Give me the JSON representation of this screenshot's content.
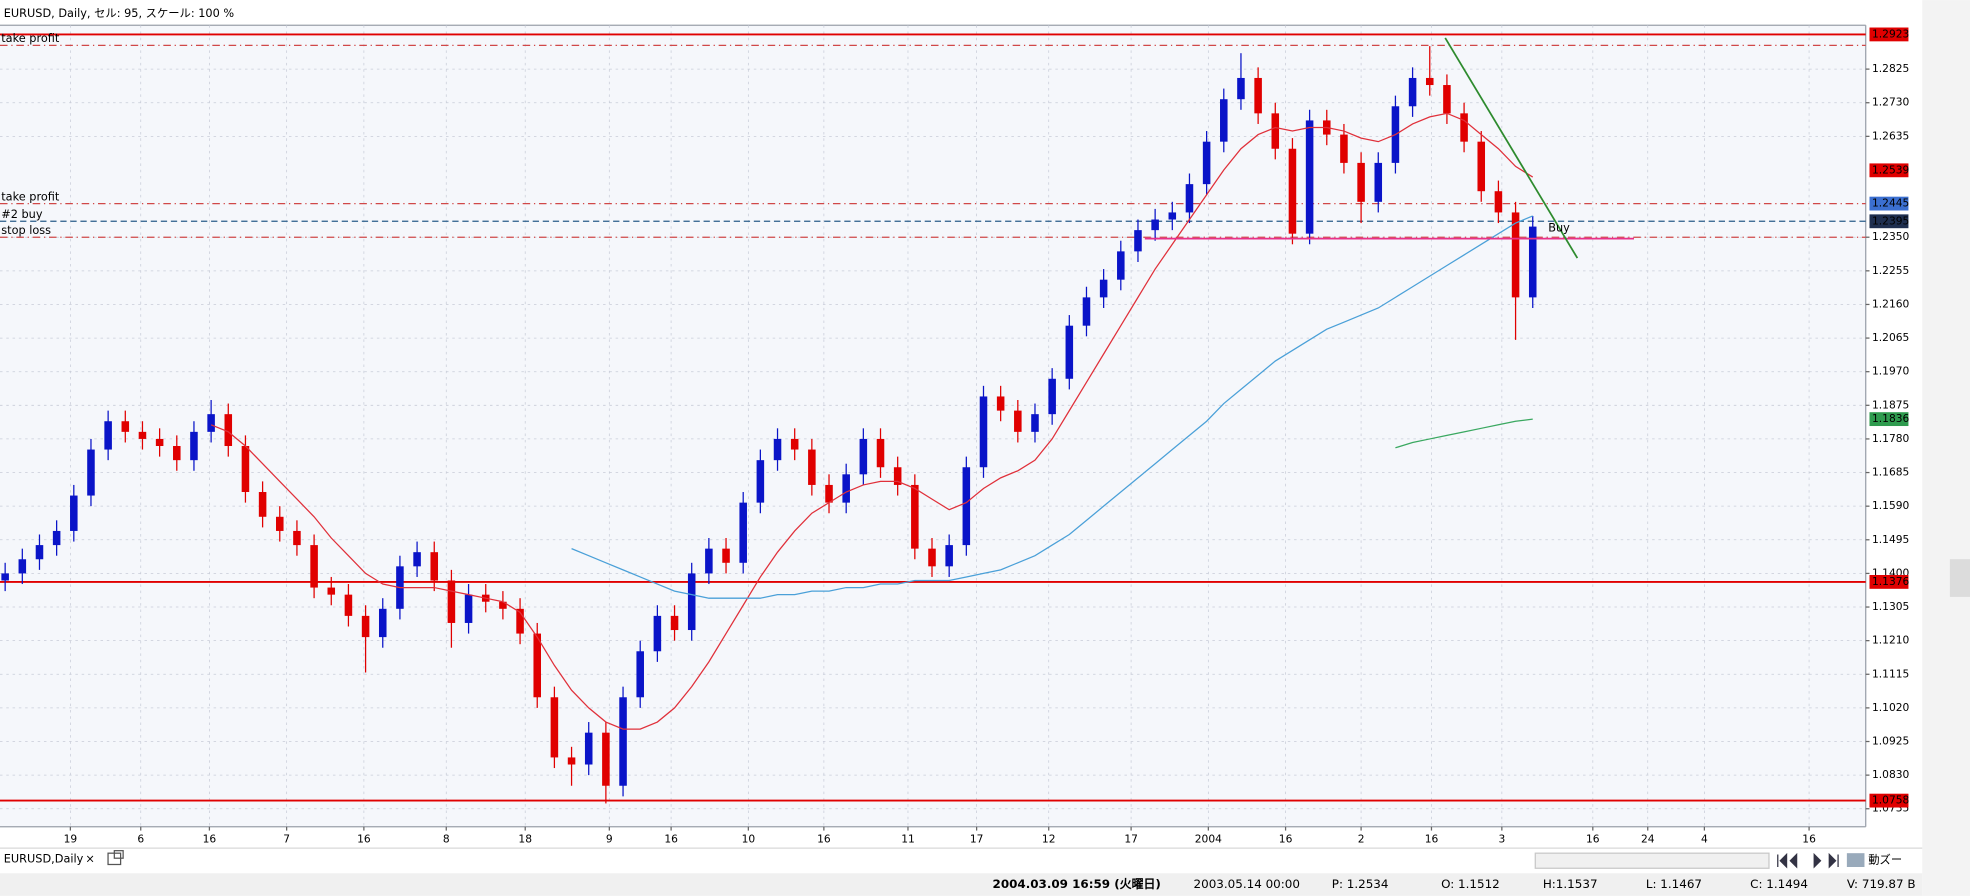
{
  "window": {
    "title": "EURUSD, Daily, セル: 95, スケール: 100 %",
    "tab": "EURUSD,Daily",
    "tab_close": "×",
    "zoom": "動ズー"
  },
  "status_bar": [
    "2004.03.09 16:59 (火曜日)",
    "2003.05.14 00:00",
    "P: 1.2534",
    "O: 1.1512",
    "H:1.1537",
    "L: 1.1467",
    "C: 1.1494",
    "V: 719.87 B"
  ],
  "chart_data": {
    "type": "candlestick",
    "up_color": "#0a14c8",
    "down_color": "#e00000",
    "xlim": [
      -0.3,
      108.4
    ],
    "ylim": [
      1.0684,
      1.2949
    ],
    "grid": true,
    "xticks": [
      {
        "value": 3.8,
        "label": "19"
      },
      {
        "value": 7.9,
        "label": "6"
      },
      {
        "value": 11.9,
        "label": "16"
      },
      {
        "value": 16.4,
        "label": "7"
      },
      {
        "value": 20.9,
        "label": "16"
      },
      {
        "value": 25.7,
        "label": "8"
      },
      {
        "value": 30.3,
        "label": "18"
      },
      {
        "value": 35.2,
        "label": "9"
      },
      {
        "value": 38.8,
        "label": "16"
      },
      {
        "value": 43.3,
        "label": "10"
      },
      {
        "value": 47.7,
        "label": "16"
      },
      {
        "value": 52.6,
        "label": "11"
      },
      {
        "value": 56.6,
        "label": "17"
      },
      {
        "value": 60.8,
        "label": "12"
      },
      {
        "value": 65.6,
        "label": "17"
      },
      {
        "value": 70.1,
        "label": "2004"
      },
      {
        "value": 74.6,
        "label": "16"
      },
      {
        "value": 79.0,
        "label": "2"
      },
      {
        "value": 83.1,
        "label": "16"
      },
      {
        "value": 87.2,
        "label": "3"
      },
      {
        "value": 92.5,
        "label": "16"
      },
      {
        "value": 95.7,
        "label": "24"
      },
      {
        "value": 99.0,
        "label": "4"
      },
      {
        "value": 105.1,
        "label": "16"
      }
    ],
    "yticks": [
      1.2825,
      {
        "value": 1.273,
        "label": "1.2730"
      },
      1.2635,
      {
        "value": 1.235,
        "label": "1.2350"
      },
      1.2255,
      {
        "value": 1.216,
        "label": "1.2160"
      },
      1.2065,
      {
        "value": 1.197,
        "label": "1.1970"
      },
      1.1875,
      {
        "value": 1.178,
        "label": "1.1780"
      },
      1.1685,
      {
        "value": 1.159,
        "label": "1.1590"
      },
      1.1495,
      {
        "value": 1.14,
        "label": "1.1400"
      },
      1.1305,
      {
        "value": 1.121,
        "label": "1.1210"
      },
      1.1115,
      {
        "value": 1.102,
        "label": "1.1020"
      },
      1.0925,
      {
        "value": 1.083,
        "label": "1.0830"
      },
      1.0735
    ],
    "open": [
      1.138,
      1.14,
      1.144,
      1.148,
      1.152,
      1.162,
      1.175,
      1.183,
      1.18,
      1.178,
      1.176,
      1.172,
      1.18,
      1.185,
      1.176,
      1.163,
      1.156,
      1.152,
      1.148,
      1.136,
      1.134,
      1.128,
      1.122,
      1.13,
      1.142,
      1.146,
      1.138,
      1.126,
      1.134,
      1.132,
      1.13,
      1.123,
      1.105,
      1.088,
      1.086,
      1.095,
      1.08,
      1.105,
      1.118,
      1.128,
      1.124,
      1.14,
      1.147,
      1.143,
      1.16,
      1.172,
      1.178,
      1.175,
      1.165,
      1.16,
      1.168,
      1.178,
      1.17,
      1.165,
      1.147,
      1.142,
      1.148,
      1.17,
      1.19,
      1.186,
      1.18,
      1.185,
      1.195,
      1.21,
      1.218,
      1.223,
      1.231,
      1.237,
      1.24,
      1.242,
      1.25,
      1.262,
      1.274,
      1.28,
      1.27,
      1.26,
      1.236,
      1.268,
      1.264,
      1.256,
      1.245,
      1.256,
      1.272,
      1.28,
      1.278,
      1.27,
      1.262,
      1.248,
      1.242,
      1.218
    ],
    "high": [
      1.143,
      1.147,
      1.151,
      1.155,
      1.165,
      1.178,
      1.186,
      1.186,
      1.183,
      1.181,
      1.179,
      1.183,
      1.189,
      1.188,
      1.179,
      1.166,
      1.159,
      1.155,
      1.151,
      1.139,
      1.137,
      1.131,
      1.133,
      1.145,
      1.149,
      1.149,
      1.141,
      1.137,
      1.137,
      1.135,
      1.133,
      1.126,
      1.108,
      1.091,
      1.098,
      1.098,
      1.108,
      1.121,
      1.131,
      1.131,
      1.143,
      1.15,
      1.15,
      1.163,
      1.175,
      1.181,
      1.181,
      1.178,
      1.168,
      1.171,
      1.181,
      1.181,
      1.173,
      1.168,
      1.15,
      1.151,
      1.173,
      1.193,
      1.193,
      1.189,
      1.188,
      1.198,
      1.213,
      1.221,
      1.226,
      1.234,
      1.24,
      1.243,
      1.245,
      1.253,
      1.265,
      1.277,
      1.287,
      1.283,
      1.273,
      1.263,
      1.271,
      1.271,
      1.267,
      1.259,
      1.259,
      1.275,
      1.283,
      1.289,
      1.281,
      1.273,
      1.265,
      1.251,
      1.245,
      1.241
    ],
    "low": [
      1.135,
      1.137,
      1.141,
      1.145,
      1.149,
      1.159,
      1.172,
      1.177,
      1.175,
      1.173,
      1.169,
      1.169,
      1.177,
      1.173,
      1.16,
      1.153,
      1.149,
      1.145,
      1.133,
      1.131,
      1.125,
      1.112,
      1.119,
      1.127,
      1.139,
      1.135,
      1.119,
      1.123,
      1.129,
      1.127,
      1.12,
      1.102,
      1.085,
      1.08,
      1.083,
      1.075,
      1.077,
      1.102,
      1.115,
      1.121,
      1.121,
      1.137,
      1.14,
      1.14,
      1.157,
      1.169,
      1.172,
      1.162,
      1.157,
      1.157,
      1.165,
      1.167,
      1.162,
      1.144,
      1.139,
      1.139,
      1.145,
      1.167,
      1.183,
      1.177,
      1.177,
      1.182,
      1.192,
      1.207,
      1.215,
      1.22,
      1.228,
      1.234,
      1.237,
      1.239,
      1.247,
      1.259,
      1.271,
      1.267,
      1.257,
      1.233,
      1.233,
      1.261,
      1.253,
      1.239,
      1.242,
      1.253,
      1.269,
      1.275,
      1.267,
      1.259,
      1.245,
      1.239,
      1.206,
      1.215
    ],
    "close": [
      1.14,
      1.144,
      1.148,
      1.152,
      1.162,
      1.175,
      1.183,
      1.18,
      1.178,
      1.176,
      1.172,
      1.18,
      1.185,
      1.176,
      1.163,
      1.156,
      1.152,
      1.148,
      1.136,
      1.134,
      1.128,
      1.122,
      1.13,
      1.142,
      1.146,
      1.138,
      1.126,
      1.134,
      1.132,
      1.13,
      1.123,
      1.105,
      1.088,
      1.086,
      1.095,
      1.08,
      1.105,
      1.118,
      1.128,
      1.124,
      1.14,
      1.147,
      1.143,
      1.16,
      1.172,
      1.178,
      1.175,
      1.165,
      1.16,
      1.168,
      1.178,
      1.17,
      1.165,
      1.147,
      1.142,
      1.148,
      1.17,
      1.19,
      1.186,
      1.18,
      1.185,
      1.195,
      1.21,
      1.218,
      1.223,
      1.231,
      1.237,
      1.24,
      1.242,
      1.25,
      1.262,
      1.274,
      1.28,
      1.27,
      1.26,
      1.236,
      1.268,
      1.264,
      1.256,
      1.245,
      1.256,
      1.272,
      1.28,
      1.278,
      1.27,
      1.262,
      1.248,
      1.242,
      1.218,
      1.238
    ],
    "series": [
      {
        "color": "#e0303a",
        "values": [
          null,
          null,
          null,
          null,
          null,
          null,
          null,
          null,
          null,
          null,
          null,
          null,
          1.182,
          1.18,
          1.176,
          1.171,
          1.166,
          1.161,
          1.156,
          1.15,
          1.145,
          1.14,
          1.137,
          1.136,
          1.136,
          1.136,
          1.135,
          1.134,
          1.133,
          1.132,
          1.129,
          1.122,
          1.114,
          1.107,
          1.102,
          1.098,
          1.096,
          1.096,
          1.098,
          1.102,
          1.108,
          1.115,
          1.123,
          1.131,
          1.139,
          1.146,
          1.152,
          1.157,
          1.16,
          1.163,
          1.165,
          1.166,
          1.166,
          1.164,
          1.161,
          1.158,
          1.16,
          1.164,
          1.167,
          1.169,
          1.172,
          1.178,
          1.186,
          1.194,
          1.202,
          1.21,
          1.218,
          1.226,
          1.233,
          1.24,
          1.247,
          1.254,
          1.26,
          1.264,
          1.266,
          1.265,
          1.266,
          1.266,
          1.265,
          1.263,
          1.262,
          1.264,
          1.267,
          1.269,
          1.27,
          1.268,
          1.264,
          1.26,
          1.255,
          1.252
        ]
      },
      {
        "color": "#4aa0d8",
        "values": [
          null,
          null,
          null,
          null,
          null,
          null,
          null,
          null,
          null,
          null,
          null,
          null,
          null,
          null,
          null,
          null,
          null,
          null,
          null,
          null,
          null,
          null,
          null,
          null,
          null,
          null,
          null,
          null,
          null,
          null,
          null,
          null,
          null,
          1.147,
          1.145,
          1.143,
          1.141,
          1.139,
          1.137,
          1.135,
          1.134,
          1.133,
          1.133,
          1.133,
          1.133,
          1.134,
          1.134,
          1.135,
          1.135,
          1.136,
          1.136,
          1.137,
          1.137,
          1.138,
          1.138,
          1.138,
          1.139,
          1.14,
          1.141,
          1.143,
          1.145,
          1.148,
          1.151,
          1.155,
          1.159,
          1.163,
          1.167,
          1.171,
          1.175,
          1.179,
          1.183,
          1.188,
          1.192,
          1.196,
          1.2,
          1.203,
          1.206,
          1.209,
          1.211,
          1.213,
          1.215,
          1.218,
          1.221,
          1.224,
          1.227,
          1.23,
          1.233,
          1.236,
          1.239,
          1.241
        ]
      },
      {
        "color": "#3aa860",
        "values": [
          null,
          null,
          null,
          null,
          null,
          null,
          null,
          null,
          null,
          null,
          null,
          null,
          null,
          null,
          null,
          null,
          null,
          null,
          null,
          null,
          null,
          null,
          null,
          null,
          null,
          null,
          null,
          null,
          null,
          null,
          null,
          null,
          null,
          null,
          null,
          null,
          null,
          null,
          null,
          null,
          null,
          null,
          null,
          null,
          null,
          null,
          null,
          null,
          null,
          null,
          null,
          null,
          null,
          null,
          null,
          null,
          null,
          null,
          null,
          null,
          null,
          null,
          null,
          null,
          null,
          null,
          null,
          null,
          null,
          null,
          null,
          null,
          null,
          null,
          null,
          null,
          null,
          null,
          null,
          null,
          null,
          1.1755,
          1.177,
          1.178,
          1.179,
          1.18,
          1.181,
          1.182,
          1.183,
          1.1836
        ]
      }
    ],
    "levels": [
      {
        "value": 1.2923,
        "color": "#e00000",
        "style": "solid"
      },
      {
        "value": 1.2892,
        "color": "#d04848",
        "style": "dashdot",
        "label": "take profit"
      },
      {
        "value": 1.2445,
        "color": "#d04848",
        "style": "dashdot",
        "label": "take profit"
      },
      {
        "value": 1.2395,
        "color": "#2a5d8a",
        "style": "dashed",
        "label": "#2 buy"
      },
      {
        "value": 1.235,
        "color": "#d04848",
        "style": "dashdot",
        "label": "stop loss"
      },
      {
        "value": 1.1376,
        "color": "#e00000",
        "style": "solid"
      },
      {
        "value": 1.0758,
        "color": "#e00000",
        "style": "solid"
      }
    ],
    "price_labels": [
      {
        "value": 1.2923,
        "color": "#e00000"
      },
      {
        "value": 1.2539,
        "color": "#e00000"
      },
      {
        "value": 1.2445,
        "color": "#3b6fd0"
      },
      {
        "value": 1.2395,
        "color": "#1f2f4f"
      },
      {
        "value": 1.1836,
        "color": "#2e9b4e"
      },
      {
        "value": 1.1376,
        "color": "#e00000"
      },
      {
        "value": 1.0758,
        "color": "#e00000"
      }
    ],
    "objects": [
      {
        "x": [
          66.4,
          94.9
        ],
        "y": [
          1.2346,
          1.2346
        ],
        "color": "#e8308a"
      },
      {
        "x": [
          83.9,
          91.6
        ],
        "y": [
          1.2913,
          1.2291
        ],
        "color": "#2e8b2e"
      }
    ],
    "annotations": [
      {
        "text": "Buy",
        "x": 89.9,
        "y": 1.2375,
        "color": "#3aa0a0"
      }
    ]
  }
}
